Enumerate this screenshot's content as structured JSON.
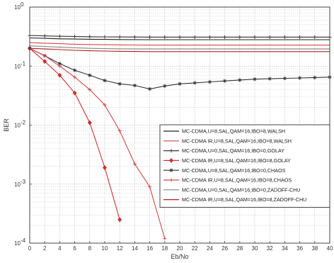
{
  "chart_data": {
    "type": "line",
    "title": "",
    "xlabel": "Eb/No",
    "ylabel": "BER",
    "xlim": [
      0,
      40
    ],
    "ylim": [
      0.0001,
      1
    ],
    "yscale": "log",
    "grid": true,
    "legend_position": "right",
    "x_ticks": [
      "0",
      "2",
      "4",
      "6",
      "8",
      "10",
      "12",
      "14",
      "16",
      "18",
      "20",
      "22",
      "24",
      "26",
      "28",
      "30",
      "32",
      "34",
      "36",
      "38",
      "40"
    ],
    "y_ticks": [
      {
        "value": 1,
        "mantissa": "10",
        "exp": "0"
      },
      {
        "value": 0.1,
        "mantissa": "10",
        "exp": "-1"
      },
      {
        "value": 0.01,
        "mantissa": "10",
        "exp": "-2"
      },
      {
        "value": 0.001,
        "mantissa": "10",
        "exp": "-3"
      },
      {
        "value": 0.0001,
        "mantissa": "10",
        "exp": "-4"
      }
    ],
    "series": [
      {
        "name": "MC-CDMA,U=8,SAL,QAM=16,IBO=8,WALSH",
        "color": "#222222",
        "marker": "none",
        "dash": "",
        "x": [
          0,
          2,
          4,
          6,
          8,
          10,
          12,
          14,
          16,
          18,
          20,
          22,
          24,
          26,
          28,
          30,
          32,
          34,
          36,
          38,
          40
        ],
        "y": [
          0.3,
          0.295,
          0.29,
          0.287,
          0.285,
          0.283,
          0.282,
          0.281,
          0.28,
          0.28,
          0.28,
          0.28,
          0.28,
          0.28,
          0.28,
          0.28,
          0.28,
          0.28,
          0.28,
          0.28,
          0.28
        ]
      },
      {
        "name": "MC-CDMA IR,U=8,SAL,QAM=16,IBO=8,WALSH",
        "color": "#d04848",
        "marker": "none",
        "dash": "",
        "x": [
          0,
          2,
          4,
          6,
          8,
          10,
          12,
          14,
          16,
          18,
          20,
          22,
          24,
          26,
          28,
          30,
          32,
          34,
          36,
          38,
          40
        ],
        "y": [
          0.25,
          0.245,
          0.24,
          0.235,
          0.232,
          0.23,
          0.229,
          0.228,
          0.227,
          0.227,
          0.227,
          0.227,
          0.227,
          0.227,
          0.227,
          0.227,
          0.227,
          0.227,
          0.227,
          0.227,
          0.227
        ]
      },
      {
        "name": "MC-CDMA,U=0,SAL,QAM=16,IBO=0,GOLAY",
        "color": "#333333",
        "marker": "plus",
        "dash": "",
        "x": [
          0,
          2,
          4,
          6,
          8,
          10,
          12,
          14,
          16,
          18,
          20,
          22,
          24,
          26,
          28,
          30,
          32,
          34,
          36,
          38,
          40
        ],
        "y": [
          0.33,
          0.325,
          0.32,
          0.318,
          0.315,
          0.313,
          0.312,
          0.311,
          0.31,
          0.31,
          0.31,
          0.31,
          0.31,
          0.31,
          0.31,
          0.31,
          0.31,
          0.31,
          0.31,
          0.31,
          0.31
        ]
      },
      {
        "name": "MC-CDMA IR,U=8,SAL,QAM=16,IBO=8,GOLAY",
        "color": "#d03030",
        "marker": "diamond",
        "dash": "",
        "x": [
          0,
          2,
          4,
          6,
          8,
          10,
          12
        ],
        "y": [
          0.2,
          0.12,
          0.07,
          0.035,
          0.011,
          0.0019,
          0.00025
        ]
      },
      {
        "name": "MC-CDMA,U=8,SAL,QAM=16,IBO=0,CHAOS",
        "color": "#333333",
        "marker": "star",
        "dash": "",
        "x": [
          0,
          2,
          4,
          6,
          8,
          10,
          12,
          14,
          16,
          18,
          20,
          22,
          24,
          26,
          28,
          30,
          32,
          34,
          36,
          38,
          40
        ],
        "y": [
          0.2,
          0.15,
          0.11,
          0.085,
          0.07,
          0.057,
          0.05,
          0.047,
          0.041,
          0.046,
          0.05,
          0.052,
          0.054,
          0.056,
          0.058,
          0.06,
          0.061,
          0.062,
          0.063,
          0.064,
          0.065
        ]
      },
      {
        "name": "MC-CDMA IR,U=8,SAL,QAM=16,IBO=8,CHAOS",
        "color": "#d04848",
        "marker": "plus",
        "dash": "",
        "x": [
          0,
          2,
          4,
          6,
          8,
          10,
          12,
          14,
          16,
          18
        ],
        "y": [
          0.2,
          0.15,
          0.1,
          0.065,
          0.04,
          0.022,
          0.008,
          0.0022,
          0.0009,
          0.00012
        ]
      },
      {
        "name": "MC-CDMA,U=0,SAL,QAM=16,IBO=0,ZADOFF-CHU",
        "color": "#888888",
        "marker": "none",
        "dash": "",
        "x": [
          0,
          2,
          4,
          6,
          8,
          10,
          12,
          14,
          16,
          18,
          20,
          22,
          24,
          26,
          28,
          30,
          32,
          34,
          36,
          38,
          40
        ],
        "y": [
          0.22,
          0.215,
          0.21,
          0.205,
          0.2,
          0.198,
          0.196,
          0.195,
          0.195,
          0.195,
          0.195,
          0.195,
          0.195,
          0.195,
          0.195,
          0.195,
          0.195,
          0.195,
          0.195,
          0.195,
          0.195
        ]
      },
      {
        "name": "MC-CDMA IR,U=8,SAL,QAM=16,IBO=8,ZADOFF-CHU",
        "color": "#b02020",
        "marker": "none",
        "dash": "",
        "x": [
          0,
          2,
          4,
          6,
          8,
          10,
          12,
          14,
          16,
          18,
          20,
          22,
          24,
          26,
          28,
          30,
          32,
          34,
          36,
          38,
          40
        ],
        "y": [
          0.2,
          0.195,
          0.19,
          0.185,
          0.182,
          0.18,
          0.178,
          0.177,
          0.176,
          0.176,
          0.176,
          0.176,
          0.176,
          0.176,
          0.176,
          0.176,
          0.176,
          0.176,
          0.176,
          0.176,
          0.176
        ]
      }
    ]
  }
}
